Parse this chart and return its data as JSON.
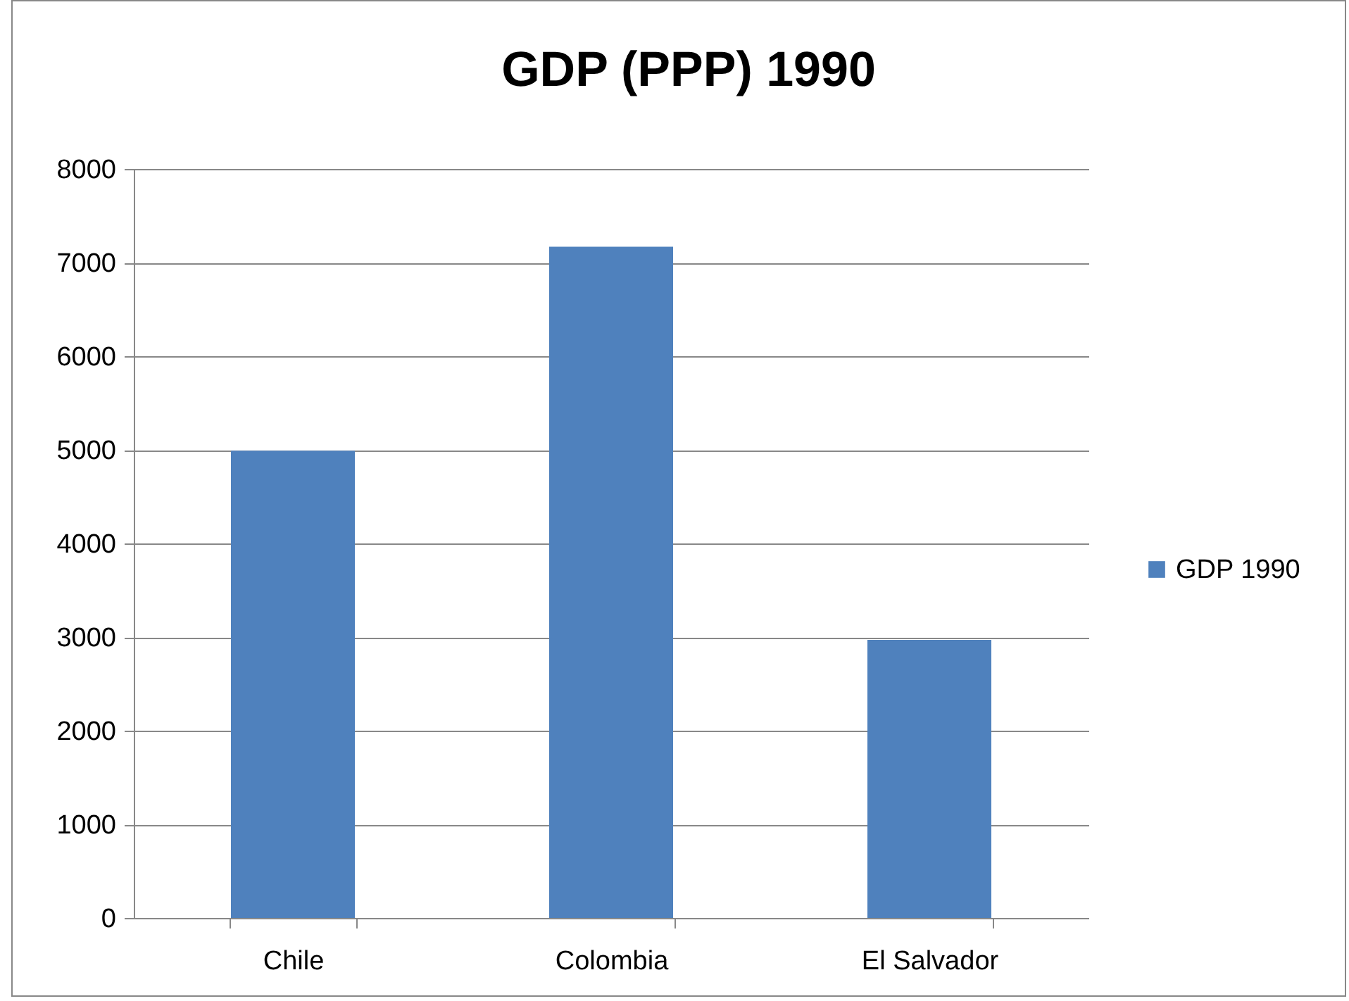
{
  "chart_data": {
    "type": "bar",
    "title": "GDP (PPP) 1990",
    "categories": [
      "Chile",
      "Colombia",
      "El Salvador"
    ],
    "series": [
      {
        "name": "GDP 1990",
        "color": "#4f81bd",
        "values": [
          4990,
          7170,
          2970
        ]
      }
    ],
    "ylim": [
      0,
      8000
    ],
    "yticks": [
      0,
      1000,
      2000,
      3000,
      4000,
      5000,
      6000,
      7000,
      8000
    ],
    "grid": "y",
    "legend": "right"
  }
}
